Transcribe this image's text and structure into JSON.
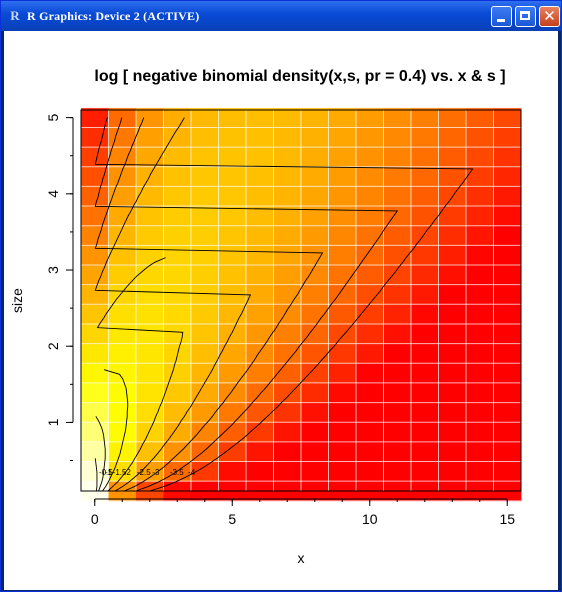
{
  "window": {
    "title": "R Graphics: Device 2 (ACTIVE)",
    "app_icon_label": "R",
    "close_glyph": "✕"
  },
  "chart_data": {
    "type": "heatmap",
    "title": "log [ negative binomial density(x,s, pr = 0.4)  vs.  x & s ]",
    "xlabel": "x",
    "ylabel": "size",
    "xlim": [
      -0.5,
      15.5
    ],
    "ylim": [
      0.1,
      5.1
    ],
    "x_ticks": [
      0,
      5,
      10,
      15
    ],
    "y_ticks": [
      1,
      2,
      3,
      4,
      5
    ],
    "prob": 0.4,
    "x_values": [
      0,
      1,
      2,
      3,
      4,
      5,
      6,
      7,
      8,
      9,
      10,
      11,
      12,
      13,
      14,
      15
    ],
    "size_range": [
      0.1,
      5.0
    ],
    "size_rows": 20,
    "grid": true,
    "colormap": "heat.colors",
    "contour_levels": [
      {
        "label": "-0.5",
        "value": -0.5
      },
      {
        "label": "-1",
        "value": -1
      },
      {
        "label": "-1.5",
        "value": -1.5
      },
      {
        "label": "-2",
        "value": -2
      },
      {
        "label": "-2.5",
        "value": -2.5
      },
      {
        "label": "-3",
        "value": -3
      },
      {
        "label": "-3.5",
        "value": -3.5
      },
      {
        "label": "-4",
        "value": -4
      }
    ]
  }
}
